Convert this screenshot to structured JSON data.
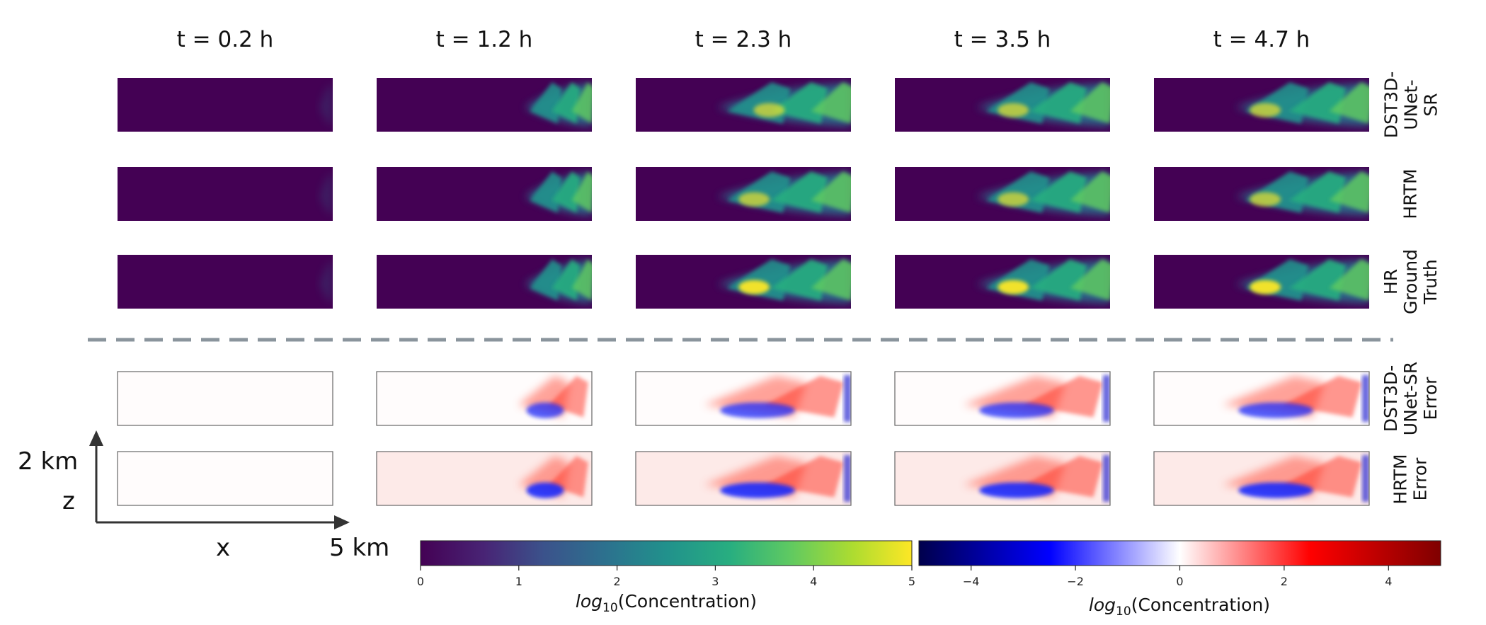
{
  "chart_data": {
    "type": "heatmap",
    "description_note": "Grid of 5 time steps x 5 rows of vertical (x-z) plume concentration cross-sections",
    "columns": [
      "t = 0.2 h",
      "t = 1.2 h",
      "t = 2.3 h",
      "t = 3.5 h",
      "t = 4.7 h"
    ],
    "rows": [
      {
        "label": "DST3D-\nUNet-\nSR",
        "colormap": "viridis",
        "group": "concentration"
      },
      {
        "label": "HRTM",
        "colormap": "viridis",
        "group": "concentration"
      },
      {
        "label": "HR\nGround\nTruth",
        "colormap": "viridis",
        "group": "concentration"
      },
      {
        "label": "DST3D-\nUNet-SR\nError",
        "colormap": "seismic",
        "group": "error"
      },
      {
        "label": "HRTM\nError",
        "colormap": "seismic",
        "group": "error"
      }
    ],
    "plume_extent_fraction": [
      0.1,
      0.5,
      1.0,
      1.0,
      1.0
    ],
    "colorbars": [
      {
        "name": "concentration",
        "colormap": "viridis",
        "range": [
          0,
          5
        ],
        "ticks": [
          "0",
          "1",
          "2",
          "3",
          "4",
          "5"
        ],
        "label_prefix": "log",
        "label_sub": "10",
        "label_suffix": "(Concentration)"
      },
      {
        "name": "error",
        "colormap": "seismic",
        "range": [
          -5,
          5
        ],
        "ticks": [
          "−4",
          "−2",
          "0",
          "2",
          "4"
        ],
        "tick_values": [
          -4,
          -2,
          0,
          2,
          4
        ],
        "label_prefix": "log",
        "label_sub": "10",
        "label_suffix": "(Concentration)"
      }
    ],
    "axes": {
      "z_label": "z",
      "z_scale": "2 km",
      "x_label": "x",
      "x_scale": "5 km"
    }
  }
}
